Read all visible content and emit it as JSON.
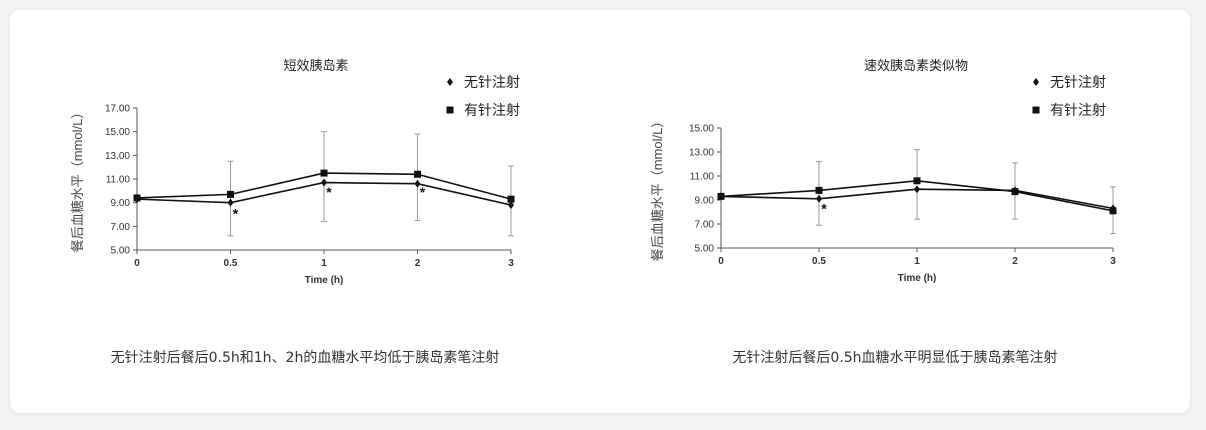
{
  "panels": [
    {
      "caption": "无针注射后餐后0.5h和1h、2h的血糖水平均低于胰岛素笔注射",
      "chart_data": {
        "type": "line",
        "title": "短效胰岛素",
        "xlabel": "Time (h)",
        "ylabel": "餐后血糖水平（mmol/L）",
        "categories": [
          "0",
          "0.5",
          "1",
          "2",
          "3"
        ],
        "ylim": [
          5,
          17
        ],
        "yticks": [
          "5.00",
          "7.00",
          "9.00",
          "11.00",
          "13.00",
          "15.00",
          "17.00"
        ],
        "legend_position": "top-right",
        "series": [
          {
            "name": "无针注射",
            "marker": "diamond",
            "values": [
              9.3,
              9.0,
              10.7,
              10.6,
              8.8
            ],
            "error_upper": [
              null,
              12.5,
              null,
              null,
              12.1
            ],
            "error_lower": [
              null,
              6.2,
              7.4,
              7.5,
              6.2
            ]
          },
          {
            "name": "有针注射",
            "marker": "square",
            "values": [
              9.4,
              9.7,
              11.5,
              11.4,
              9.3
            ],
            "error_upper": [
              null,
              null,
              15.0,
              14.8,
              null
            ],
            "error_lower": [
              null,
              null,
              null,
              null,
              null
            ]
          }
        ],
        "annotations": [
          {
            "x": "0.5",
            "y": 8.0,
            "text": "*"
          },
          {
            "x": "1",
            "y": 9.8,
            "text": "*"
          },
          {
            "x": "2",
            "y": 9.8,
            "text": "*"
          }
        ]
      }
    },
    {
      "caption": "无针注射后餐后0.5h血糖水平明显低于胰岛素笔注射",
      "chart_data": {
        "type": "line",
        "title": "速效胰岛素类似物",
        "xlabel": "Time (h)",
        "ylabel": "餐后血糖水平（mmol/L）",
        "categories": [
          "0",
          "0.5",
          "1",
          "2",
          "3"
        ],
        "ylim": [
          5,
          15
        ],
        "yticks": [
          "5.00",
          "7.00",
          "9.00",
          "11.00",
          "13.00",
          "15.00"
        ],
        "legend_position": "top-right",
        "series": [
          {
            "name": "无针注射",
            "marker": "diamond",
            "values": [
              9.3,
              9.1,
              9.9,
              9.8,
              8.3
            ],
            "error_upper": [
              null,
              12.2,
              null,
              null,
              10.1
            ],
            "error_lower": [
              null,
              6.9,
              7.4,
              7.4,
              6.2
            ]
          },
          {
            "name": "有针注射",
            "marker": "square",
            "values": [
              9.3,
              9.8,
              10.6,
              9.7,
              8.1
            ],
            "error_upper": [
              null,
              null,
              13.2,
              12.1,
              null
            ],
            "error_lower": [
              null,
              null,
              null,
              null,
              null
            ]
          }
        ],
        "annotations": [
          {
            "x": "0.5",
            "y": 8.2,
            "text": "*"
          }
        ]
      }
    }
  ]
}
